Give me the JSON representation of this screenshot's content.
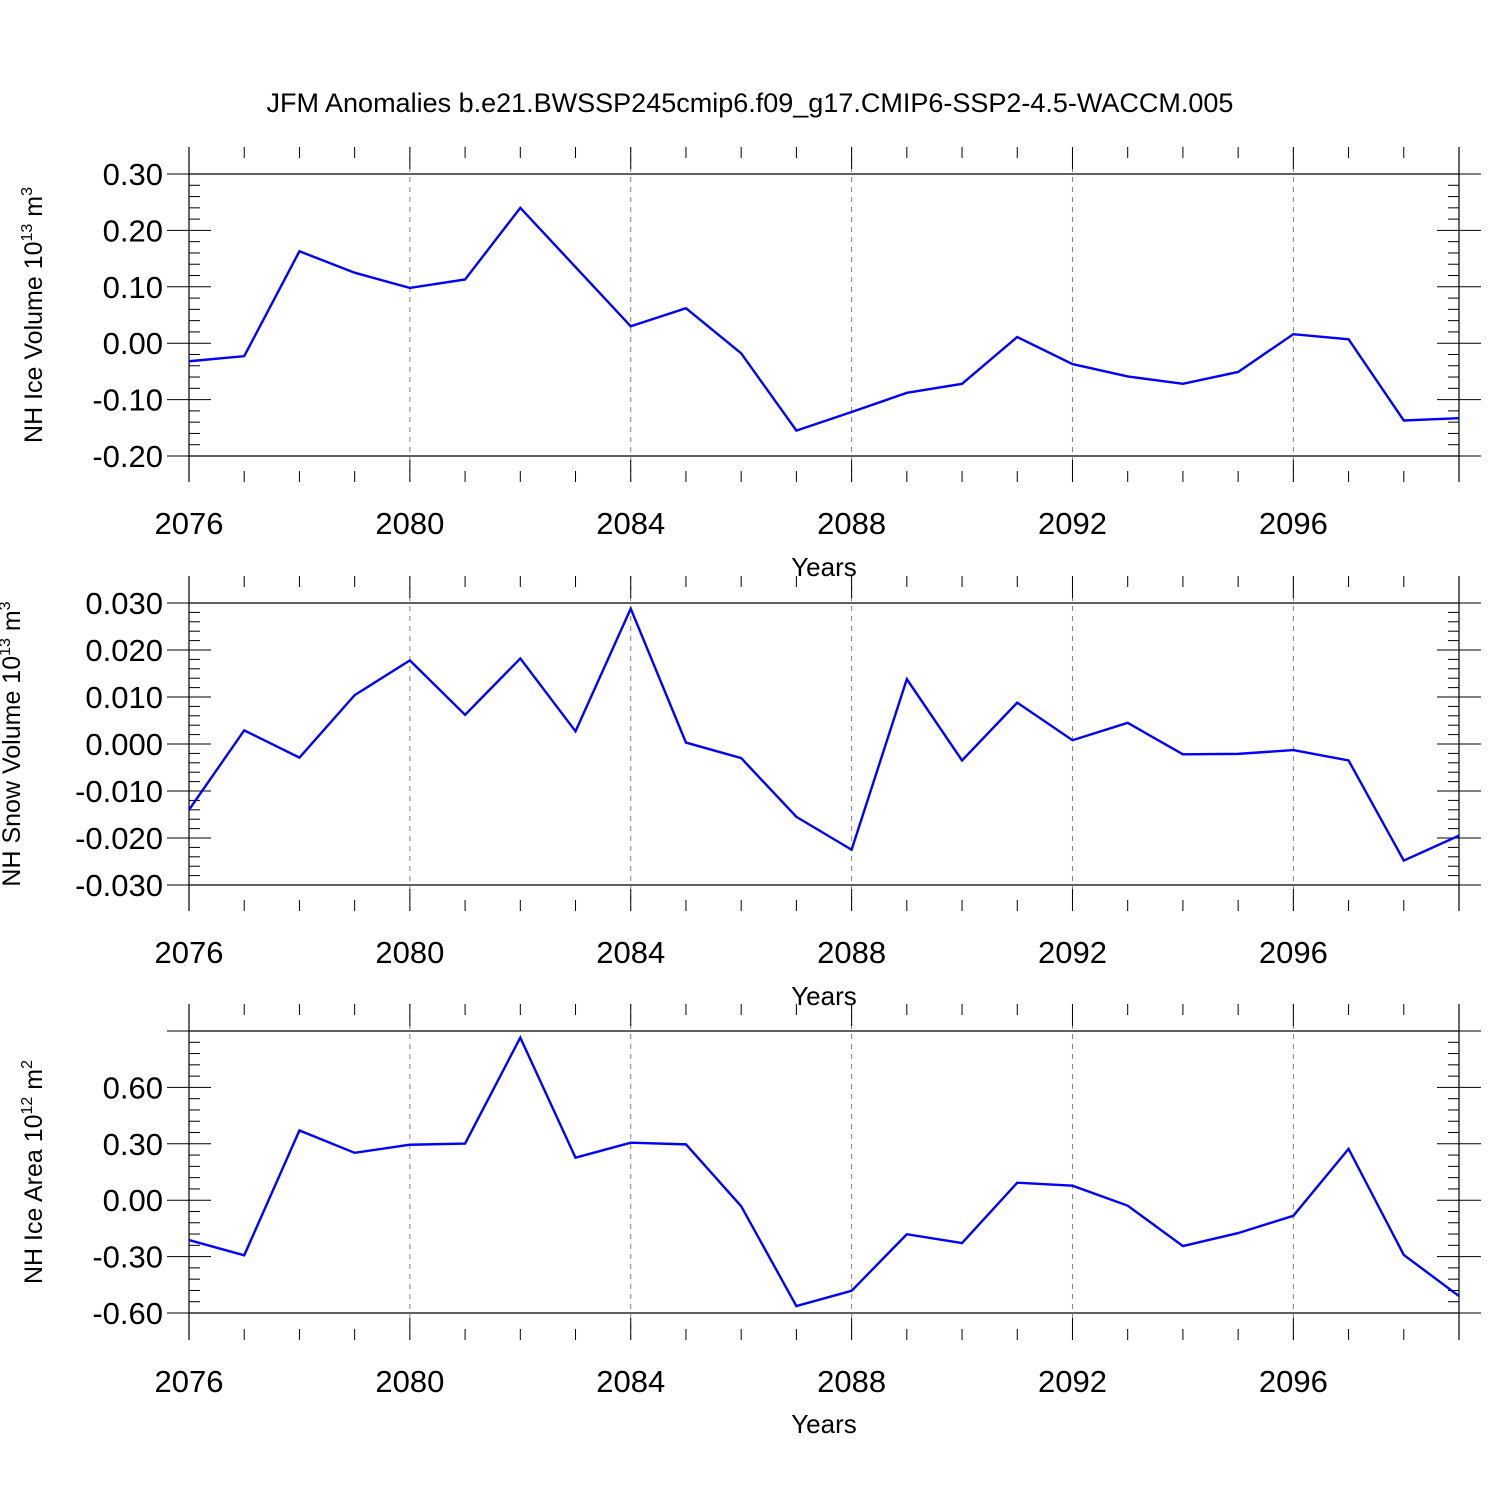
{
  "chart_title": "JFM Anomalies b.e21.BWSSP245cmip6.f09_g17.CMIP6-SSP2-4.5-WACCM.005",
  "colors": {
    "line": "#0000ff",
    "axis": "#000000",
    "grid": "#808080"
  },
  "chart_data": [
    {
      "type": "line",
      "name": "nh-ice-volume",
      "ylabel": {
        "main": "NH Ice Volume 10",
        "sup1": "13",
        "unit": " m",
        "sup2": "3"
      },
      "xlabel": "Years",
      "xlim": [
        2076,
        2099
      ],
      "ylim": [
        -0.2,
        0.3
      ],
      "yticks": [
        -0.2,
        -0.1,
        0.0,
        0.1,
        0.2,
        0.3
      ],
      "yticklabels": [
        "-0.20",
        "-0.10",
        "0.00",
        "0.10",
        "0.20",
        "0.30"
      ],
      "xticks": [
        2076,
        2080,
        2084,
        2088,
        2092,
        2096
      ],
      "xticklabels": [
        "2076",
        "2080",
        "2084",
        "2088",
        "2092",
        "2096"
      ],
      "x": [
        2076,
        2077,
        2078,
        2079,
        2080,
        2081,
        2082,
        2083,
        2084,
        2085,
        2086,
        2087,
        2088,
        2089,
        2090,
        2091,
        2092,
        2093,
        2094,
        2095,
        2096,
        2097,
        2098,
        2099
      ],
      "values": [
        -0.032,
        -0.023,
        0.163,
        0.125,
        0.098,
        0.113,
        0.24,
        0.135,
        0.03,
        0.062,
        -0.018,
        -0.155,
        -0.122,
        -0.088,
        -0.072,
        0.011,
        -0.037,
        -0.059,
        -0.072,
        -0.051,
        0.016,
        0.007,
        -0.137,
        -0.133
      ]
    },
    {
      "type": "line",
      "name": "nh-snow-volume",
      "ylabel": {
        "main": "NH Snow Volume 10",
        "sup1": "13",
        "unit": " m",
        "sup2": "3"
      },
      "xlabel": "Years",
      "xlim": [
        2076,
        2099
      ],
      "ylim": [
        -0.03,
        0.03
      ],
      "yticks": [
        -0.03,
        -0.02,
        -0.01,
        0.0,
        0.01,
        0.02,
        0.03
      ],
      "yticklabels": [
        "-0.030",
        "-0.020",
        "-0.010",
        "0.000",
        "0.010",
        "0.020",
        "0.030"
      ],
      "xticks": [
        2076,
        2080,
        2084,
        2088,
        2092,
        2096
      ],
      "xticklabels": [
        "2076",
        "2080",
        "2084",
        "2088",
        "2092",
        "2096"
      ],
      "x": [
        2076,
        2077,
        2078,
        2079,
        2080,
        2081,
        2082,
        2083,
        2084,
        2085,
        2086,
        2087,
        2088,
        2089,
        2090,
        2091,
        2092,
        2093,
        2094,
        2095,
        2096,
        2097,
        2098,
        2099
      ],
      "values": [
        -0.014,
        0.0029,
        -0.0029,
        0.0104,
        0.0178,
        0.0062,
        0.0182,
        0.0027,
        0.0288,
        0.0003,
        -0.003,
        -0.0155,
        -0.0225,
        0.0138,
        -0.0035,
        0.0088,
        0.0008,
        0.0045,
        -0.0022,
        -0.0021,
        -0.0013,
        -0.0035,
        -0.0248,
        -0.0195
      ]
    },
    {
      "type": "line",
      "name": "nh-ice-area",
      "ylabel": {
        "main": "NH Ice Area 10",
        "sup1": "12",
        "unit": " m",
        "sup2": "2"
      },
      "xlabel": "Years",
      "xlim": [
        2076,
        2099
      ],
      "ylim": [
        -0.6,
        0.9
      ],
      "yticks": [
        -0.6,
        -0.3,
        0.0,
        0.3,
        0.6
      ],
      "yticklabels": [
        "-0.60",
        "-0.30",
        "0.00",
        "0.30",
        "0.60"
      ],
      "xticks": [
        2076,
        2080,
        2084,
        2088,
        2092,
        2096
      ],
      "xticklabels": [
        "2076",
        "2080",
        "2084",
        "2088",
        "2092",
        "2096"
      ],
      "x": [
        2076,
        2077,
        2078,
        2079,
        2080,
        2081,
        2082,
        2083,
        2084,
        2085,
        2086,
        2087,
        2088,
        2089,
        2090,
        2091,
        2092,
        2093,
        2094,
        2095,
        2096,
        2097,
        2098,
        2099
      ],
      "values": [
        -0.212,
        -0.293,
        0.371,
        0.252,
        0.295,
        0.301,
        0.865,
        0.226,
        0.306,
        0.297,
        -0.032,
        -0.563,
        -0.482,
        -0.181,
        -0.228,
        0.093,
        0.077,
        -0.029,
        -0.244,
        -0.175,
        -0.083,
        0.273,
        -0.291,
        -0.51
      ]
    }
  ]
}
